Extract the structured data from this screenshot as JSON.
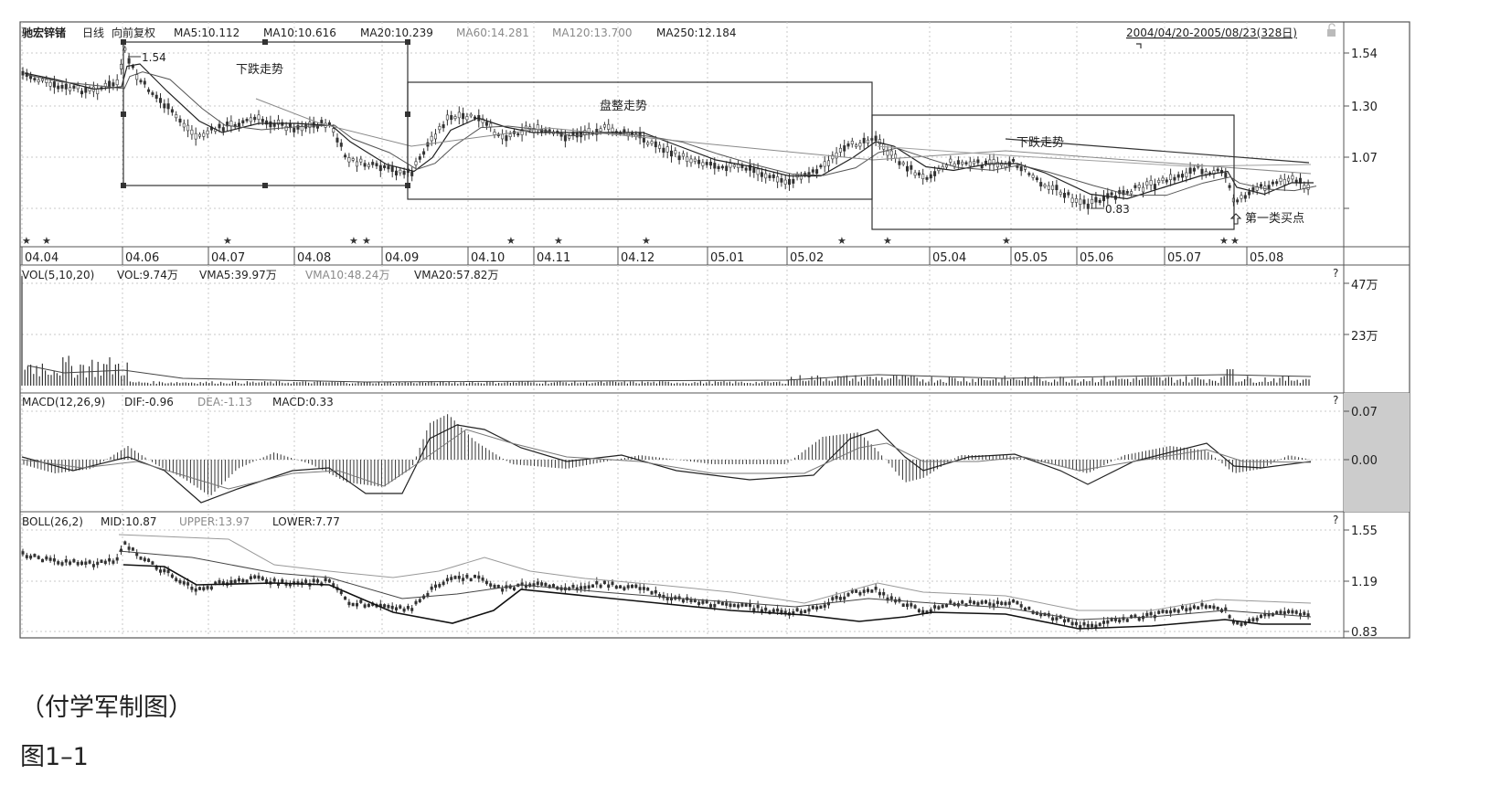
{
  "stock": {
    "name": "驰宏锌锗",
    "period": "日线",
    "adjust": "向前复权",
    "range": "2004/04/20-2005/08/23(328日)"
  },
  "indicators": {
    "price": [
      "MA5:10.112",
      "MA10:10.616",
      "MA20:10.239",
      "MA60:14.281",
      "MA120:13.700",
      "MA250:12.184"
    ],
    "vol_title": "VOL(5,10,20)",
    "vol": [
      "VOL:9.74万",
      "VMA5:39.97万",
      "VMA10:48.24万",
      "VMA20:57.82万"
    ],
    "macd_title": "MACD(12,26,9)",
    "macd": [
      "DIF:-0.96",
      "DEA:-1.13",
      "MACD:0.33"
    ],
    "boll_title": "BOLL(26,2)",
    "boll": [
      "MID:10.87",
      "UPPER:13.97",
      "LOWER:7.77"
    ]
  },
  "axes": {
    "price_ticks": [
      "1.54",
      "1.30",
      "1.07"
    ],
    "vol_ticks": [
      "47万",
      "23万"
    ],
    "macd_ticks": [
      "0.07",
      "0.00"
    ],
    "boll_ticks": [
      "1.55",
      "1.19",
      "0.83"
    ],
    "months": [
      "04.04",
      "04.06",
      "04.07",
      "04.08",
      "04.09",
      "04.10",
      "04.11",
      "04.12",
      "05.01",
      "05.02",
      "05.04",
      "05.05",
      "05.06",
      "05.07",
      "05.08"
    ]
  },
  "annotations": {
    "high_label": "1.54",
    "low_label": "0.83",
    "down_trend_1": "下跌走势",
    "consolidation": "盘整走势",
    "down_trend_2": "下跌走势",
    "buy_point": "第一类买点",
    "question_mark": "?"
  },
  "caption": {
    "source": "（付学军制图）",
    "figure": "图1–1"
  },
  "chart_data": {
    "type": "line",
    "x_labels": [
      "04.04",
      "04.06",
      "04.07",
      "04.08",
      "04.09",
      "04.10",
      "04.11",
      "04.12",
      "05.01",
      "05.02",
      "05.04",
      "05.05",
      "05.06",
      "05.07",
      "05.08"
    ],
    "series": [
      {
        "name": "MA5",
        "values": [
          1.45,
          1.4,
          1.18,
          1.2,
          1.05,
          1.22,
          1.18,
          1.15,
          1.02,
          1.0,
          0.98,
          1.03,
          0.92,
          1.05,
          0.99
        ]
      },
      {
        "name": "MA20",
        "values": [
          1.44,
          1.45,
          1.22,
          1.21,
          1.1,
          1.2,
          1.2,
          1.16,
          1.05,
          1.03,
          1.0,
          1.02,
          0.95,
          1.03,
          1.0
        ]
      }
    ],
    "price_ylim": [
      0.83,
      1.54
    ],
    "boxes": [
      {
        "label": "下跌走势",
        "from": "04.06",
        "to": "04.09",
        "top": 1.54,
        "bottom": 0.99
      },
      {
        "label": "盘整走势",
        "from": "04.09",
        "to": "05.02",
        "top": 1.35,
        "bottom": 0.95
      },
      {
        "label": "下跌走势",
        "from": "05.02",
        "to": "05.07",
        "top": 1.25,
        "bottom": 0.83
      }
    ],
    "marked_points": [
      {
        "label": "1.54",
        "x": "04.06",
        "y": 1.54
      },
      {
        "label": "0.83",
        "x": "05.06",
        "y": 0.83
      }
    ],
    "grid": true
  }
}
